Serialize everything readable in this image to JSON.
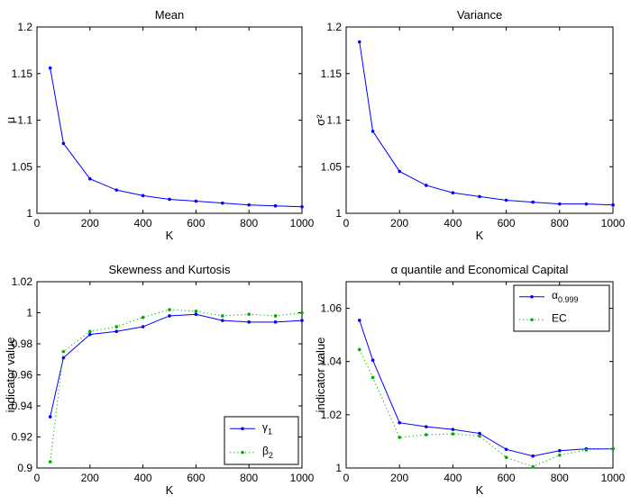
{
  "chart_data": [
    {
      "type": "line",
      "title": "Mean",
      "xlabel": "K",
      "ylabel": "μ",
      "xlim": [
        0,
        1000
      ],
      "ylim": [
        1,
        1.2
      ],
      "xticks": [
        0,
        200,
        400,
        600,
        800,
        1000
      ],
      "yticks": [
        1,
        1.05,
        1.1,
        1.15,
        1.2
      ],
      "ytick_labels": [
        "1",
        "1.05",
        "1.1",
        "1.15",
        "1.2"
      ],
      "x": [
        50,
        100,
        200,
        300,
        400,
        500,
        600,
        700,
        800,
        900,
        1000
      ],
      "series": [
        {
          "values": [
            1.156,
            1.075,
            1.037,
            1.025,
            1.019,
            1.015,
            1.013,
            1.011,
            1.009,
            1.008,
            1.007
          ],
          "color": "#0000ff",
          "style": "solid-dot"
        }
      ],
      "legend": null
    },
    {
      "type": "line",
      "title": "Variance",
      "xlabel": "K",
      "ylabel": "σ²",
      "xlim": [
        0,
        1000
      ],
      "ylim": [
        1,
        1.2
      ],
      "xticks": [
        0,
        200,
        400,
        600,
        800,
        1000
      ],
      "yticks": [
        1,
        1.05,
        1.1,
        1.15,
        1.2
      ],
      "ytick_labels": [
        "1",
        "1.05",
        "1.1",
        "1.15",
        "1.2"
      ],
      "x": [
        50,
        100,
        200,
        300,
        400,
        500,
        600,
        700,
        800,
        900,
        1000
      ],
      "series": [
        {
          "values": [
            1.184,
            1.088,
            1.045,
            1.03,
            1.022,
            1.018,
            1.014,
            1.012,
            1.01,
            1.01,
            1.009
          ],
          "color": "#0000ff",
          "style": "solid-dot"
        }
      ],
      "legend": null
    },
    {
      "type": "line",
      "title": "Skewness and Kurtosis",
      "xlabel": "K",
      "ylabel": "indicator value",
      "xlim": [
        0,
        1000
      ],
      "ylim": [
        0.9,
        1.02
      ],
      "xticks": [
        0,
        200,
        400,
        600,
        800,
        1000
      ],
      "yticks": [
        0.9,
        0.92,
        0.94,
        0.96,
        0.98,
        1,
        1.02
      ],
      "ytick_labels": [
        "0.9",
        "0.92",
        "0.94",
        "0.96",
        "0.98",
        "1",
        "1.02"
      ],
      "x": [
        50,
        100,
        200,
        300,
        400,
        500,
        600,
        700,
        800,
        900,
        1000
      ],
      "series": [
        {
          "name": "γ",
          "sub": "1",
          "values": [
            0.933,
            0.971,
            0.986,
            0.988,
            0.991,
            0.998,
            0.999,
            0.995,
            0.994,
            0.994,
            0.995
          ],
          "color": "#0000ff",
          "style": "solid-dot"
        },
        {
          "name": "β",
          "sub": "2",
          "values": [
            0.904,
            0.975,
            0.988,
            0.991,
            0.997,
            1.002,
            1.001,
            0.998,
            0.999,
            0.998,
            1.0
          ],
          "color": "#00aa00",
          "style": "dotted-dot"
        }
      ],
      "legend": "bottom-right"
    },
    {
      "type": "line",
      "title": "α quantile and Economical Capital",
      "xlabel": "K",
      "ylabel": "indicator value",
      "xlim": [
        0,
        1000
      ],
      "ylim": [
        1,
        1.07
      ],
      "xticks": [
        0,
        200,
        400,
        600,
        800,
        1000
      ],
      "yticks": [
        1,
        1.02,
        1.04,
        1.06
      ],
      "ytick_labels": [
        "1",
        "1.02",
        "1.04",
        "1.06"
      ],
      "x": [
        50,
        100,
        200,
        300,
        400,
        500,
        600,
        700,
        800,
        900,
        1000
      ],
      "series": [
        {
          "name": "α",
          "sub": "0.999",
          "values": [
            1.0555,
            1.0405,
            1.017,
            1.0155,
            1.0145,
            1.013,
            1.007,
            1.0045,
            1.0065,
            1.0072,
            1.0072
          ],
          "color": "#0000ff",
          "style": "solid-dot"
        },
        {
          "name": "EC",
          "sub": "",
          "values": [
            1.0445,
            1.034,
            1.0115,
            1.0125,
            1.0128,
            1.012,
            1.004,
            1.0005,
            1.0048,
            1.0068,
            1.0072
          ],
          "color": "#00aa00",
          "style": "dotted-dot"
        }
      ],
      "legend": "top-right"
    }
  ]
}
